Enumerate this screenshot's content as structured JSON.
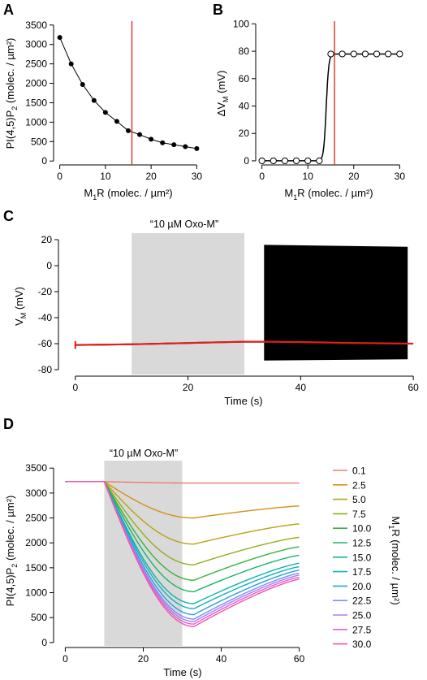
{
  "panels": {
    "A": {
      "letter": "A",
      "ylabel": "PI(4,5)P",
      "ylabel_sub": "2",
      "ylabel_rest": " (molec. / µm²)",
      "xlabel": "M",
      "xlabel_sub": "1",
      "xlabel_rest": "R (molec. / µm²)"
    },
    "B": {
      "letter": "B",
      "ylabel": "ΔV",
      "ylabel_sub": "M",
      "ylabel_rest": " (mV)",
      "xlabel": "M",
      "xlabel_sub": "1",
      "xlabel_rest": "R (molec. / µm²)"
    },
    "C": {
      "letter": "C",
      "annotation": "“10 µM Oxo-M”",
      "ylabel": "V",
      "ylabel_sub": "M",
      "ylabel_rest": " (mV)",
      "xlabel": "Time (s)"
    },
    "D": {
      "letter": "D",
      "annotation": "“10 µM Oxo-M”",
      "ylabel": "PI(4,5)P",
      "ylabel_sub": "2",
      "ylabel_rest": " (molec. / µm²)",
      "xlabel": "Time (s)",
      "legend_title": "M",
      "legend_title_sub": "1",
      "legend_title_rest": "R (molec. / µm²)"
    }
  },
  "chart_data": [
    {
      "id": "A",
      "type": "scatter",
      "xlim": [
        -1,
        31
      ],
      "ylim": [
        -100,
        3600
      ],
      "xticks": [
        0,
        10,
        20,
        30
      ],
      "yticks": [
        0,
        500,
        1000,
        1500,
        2000,
        2500,
        3000,
        3500
      ],
      "x": [
        0,
        2.5,
        5,
        7.5,
        10,
        12.5,
        15,
        17.5,
        20,
        22.5,
        25,
        27.5,
        30
      ],
      "y": [
        3180,
        2500,
        1970,
        1560,
        1250,
        1020,
        780,
        680,
        560,
        470,
        420,
        370,
        320
      ],
      "marker": "filled-circle",
      "fit_line": true,
      "vline_x": 15.8,
      "vline_color": "#e0201b",
      "grid": false
    },
    {
      "id": "B",
      "type": "scatter",
      "xlim": [
        -1,
        31
      ],
      "ylim": [
        -3,
        102
      ],
      "xticks": [
        0,
        10,
        20,
        30
      ],
      "yticks": [
        0,
        20,
        40,
        60,
        80,
        100
      ],
      "x": [
        0,
        2.5,
        5,
        7.5,
        10,
        12.5,
        15,
        17.5,
        20,
        22.5,
        25,
        27.5,
        30
      ],
      "y": [
        0,
        0,
        0,
        0,
        0,
        0,
        78,
        78,
        78,
        78,
        78,
        78,
        78
      ],
      "marker": "open-circle",
      "fit_line": true,
      "vline_x": 15.8,
      "vline_color": "#e0201b",
      "grid": false
    },
    {
      "id": "C",
      "type": "line",
      "xlim": [
        -3,
        62
      ],
      "ylim": [
        -85,
        25
      ],
      "xticks": [
        0,
        20,
        40,
        60
      ],
      "yticks": [
        -80,
        -60,
        -40,
        -20,
        0,
        20
      ],
      "shaded_interval": [
        10,
        30
      ],
      "series": [
        {
          "color": "#000000",
          "x": [
            0,
            10,
            20,
            30,
            33.5
          ],
          "y": [
            -61,
            -60.5,
            -59.5,
            -58.5,
            -58.5
          ],
          "oscillation_band": {
            "x_start": 33.5,
            "x_end": 59,
            "top": [
              16,
              14.5
            ],
            "bottom": [
              -73,
              -72
            ]
          }
        },
        {
          "color": "#e0201b",
          "x": [
            0,
            10,
            20,
            30,
            35,
            40,
            50,
            60
          ],
          "y": [
            -61,
            -60.5,
            -59.5,
            -58.5,
            -58.5,
            -58.8,
            -59.5,
            -60
          ]
        }
      ],
      "grid": false
    },
    {
      "id": "D",
      "type": "line",
      "xlim": [
        -3,
        63
      ],
      "ylim": [
        -100,
        3650
      ],
      "xticks": [
        0,
        20,
        40,
        60
      ],
      "yticks": [
        0,
        500,
        1000,
        1500,
        2000,
        2500,
        3000,
        3500
      ],
      "shaded_interval": [
        10,
        30
      ],
      "legend_placement": "right",
      "baseline": 3230,
      "series": [
        {
          "name": "0.1",
          "color": "#f07b6b",
          "min": 3200,
          "end": 3200
        },
        {
          "name": "2.5",
          "color": "#d78f14",
          "min": 2500,
          "end": 2740
        },
        {
          "name": "5.0",
          "color": "#b9a315",
          "min": 1975,
          "end": 2380
        },
        {
          "name": "7.5",
          "color": "#8fb01a",
          "min": 1560,
          "end": 2110
        },
        {
          "name": "10.0",
          "color": "#39b23a",
          "min": 1250,
          "end": 1920
        },
        {
          "name": "12.5",
          "color": "#1ab56a",
          "min": 1020,
          "end": 1750
        },
        {
          "name": "15.0",
          "color": "#12b59e",
          "min": 780,
          "end": 1590
        },
        {
          "name": "17.5",
          "color": "#14afc2",
          "min": 680,
          "end": 1520
        },
        {
          "name": "20.0",
          "color": "#2a9fe0",
          "min": 560,
          "end": 1450
        },
        {
          "name": "22.5",
          "color": "#7b8ef2",
          "min": 470,
          "end": 1390
        },
        {
          "name": "25.0",
          "color": "#b07cf0",
          "min": 420,
          "end": 1350
        },
        {
          "name": "27.5",
          "color": "#e060d8",
          "min": 370,
          "end": 1310
        },
        {
          "name": "30.0",
          "color": "#ef58a8",
          "min": 320,
          "end": 1270
        }
      ],
      "grid": false
    }
  ]
}
